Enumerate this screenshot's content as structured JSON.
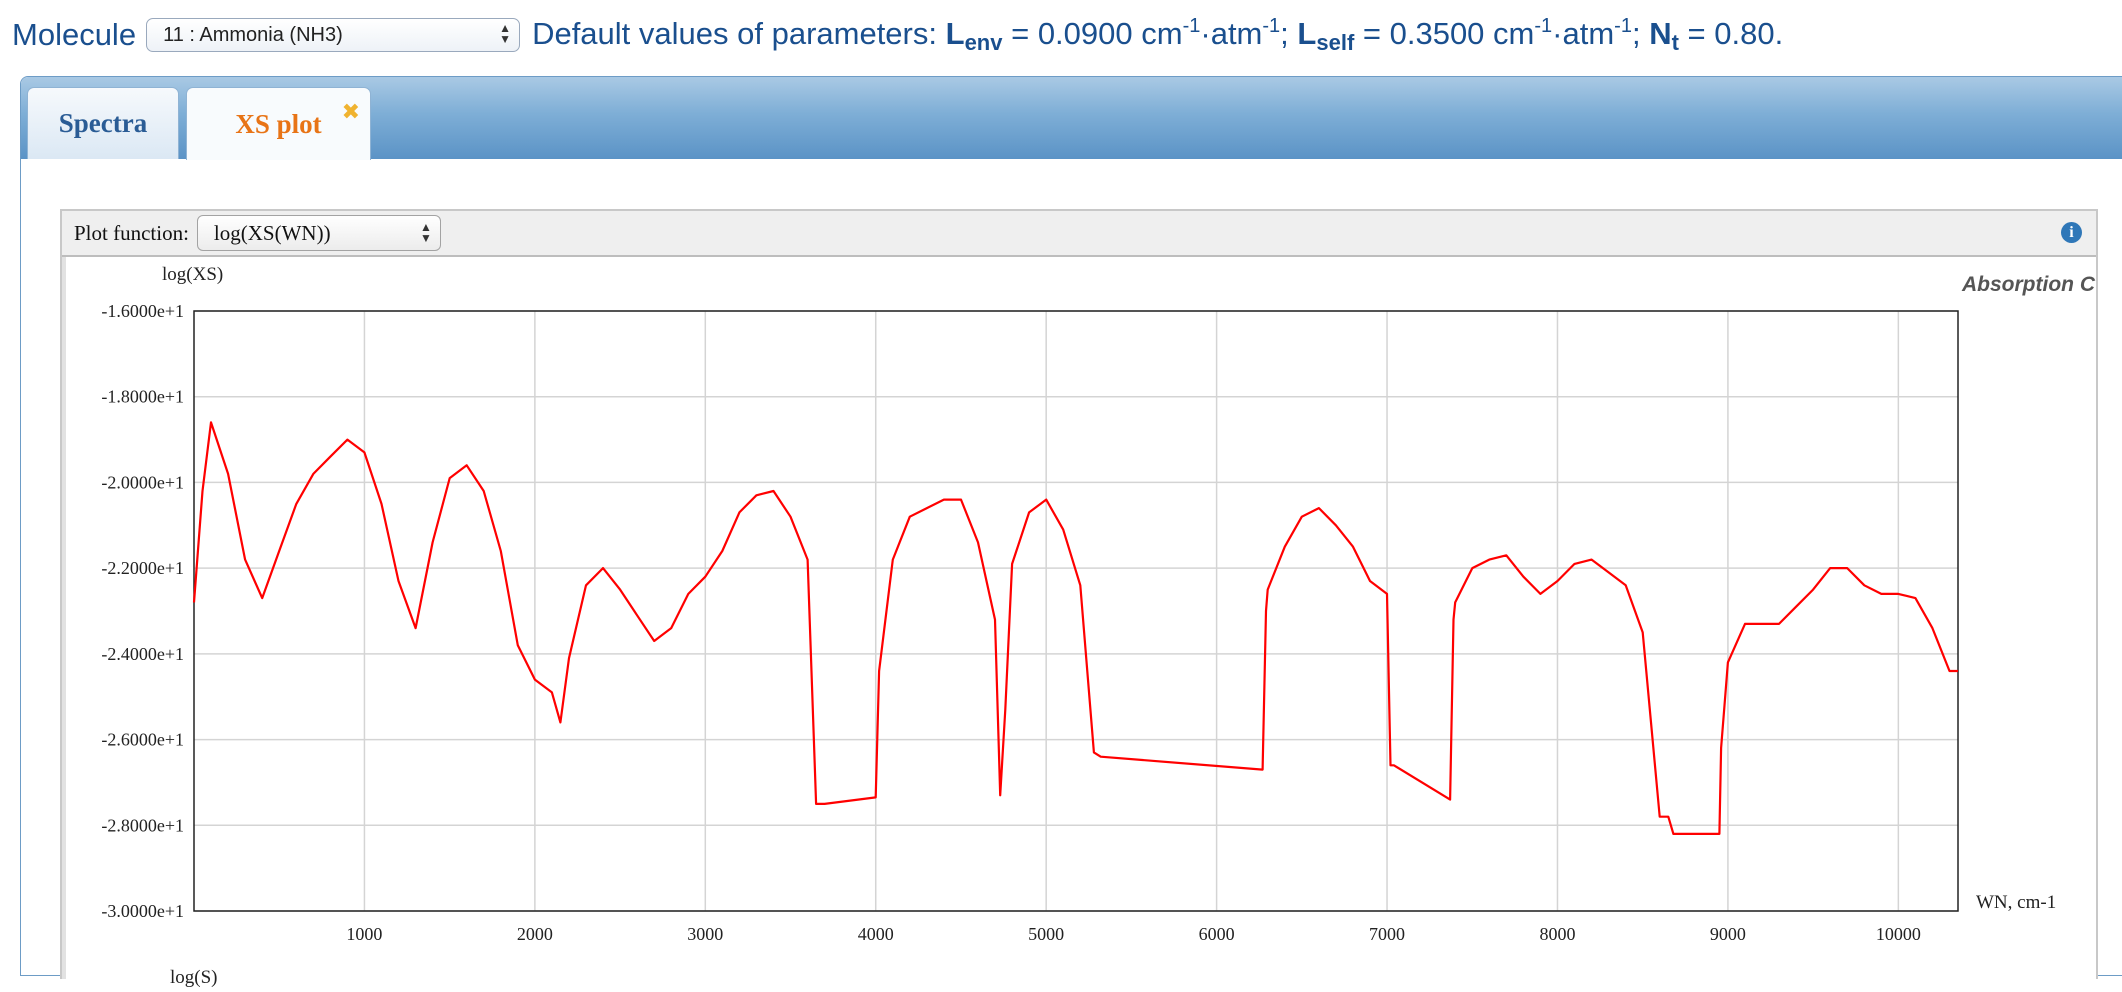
{
  "header": {
    "molecule_label": "Molecule",
    "molecule_selected": "11 : Ammonia (NH3)",
    "defaults_prefix": "Default values of parameters:",
    "L_env_symbol": "L",
    "L_env_sub": "env",
    "L_env_value": " = 0.0900 cm",
    "L_self_symbol": "L",
    "L_self_sub": "self",
    "L_self_value": " = 0.3500 cm",
    "N_t_symbol": "N",
    "N_t_sub": "t",
    "N_t_value": " = 0.80.",
    "unit_mid": "·atm",
    "exp": "-1",
    "separator": ";"
  },
  "tabs": [
    {
      "label": "Spectra",
      "active": false
    },
    {
      "label": "XS plot",
      "active": true,
      "close_glyph": "✖"
    }
  ],
  "plot_toolbar": {
    "label": "Plot function:",
    "selected": "log(XS(WN))",
    "info_icon": "info-icon"
  },
  "colors": {
    "series": "#ff0000",
    "accent": "#1a4f8e",
    "active_tab": "#e87416"
  },
  "chart_data": {
    "type": "line",
    "ylabel": "log(XS)",
    "xlabel": "WN, cm-1",
    "bottom_label": "log(S)",
    "legend_text": "Absorption C",
    "xlim": [
      0,
      10350
    ],
    "ylim": [
      -30,
      -16
    ],
    "x_ticks": [
      1000,
      2000,
      3000,
      4000,
      5000,
      6000,
      7000,
      8000,
      9000,
      10000
    ],
    "y_ticks": [
      {
        "value": -16,
        "label": "-1.6000e+1"
      },
      {
        "value": -18,
        "label": "-1.8000e+1"
      },
      {
        "value": -20,
        "label": "-2.0000e+1"
      },
      {
        "value": -22,
        "label": "-2.2000e+1"
      },
      {
        "value": -24,
        "label": "-2.4000e+1"
      },
      {
        "value": -26,
        "label": "-2.6000e+1"
      },
      {
        "value": -28,
        "label": "-2.8000e+1"
      },
      {
        "value": -30,
        "label": "-3.0000e+1"
      }
    ],
    "grid": true,
    "series": [
      {
        "color": "#ff0000",
        "x": [
          0,
          50,
          100,
          200,
          300,
          400,
          500,
          600,
          700,
          800,
          900,
          1000,
          1100,
          1200,
          1300,
          1400,
          1500,
          1600,
          1700,
          1800,
          1900,
          2000,
          2100,
          2150,
          2200,
          2300,
          2400,
          2500,
          2600,
          2700,
          2800,
          2900,
          3000,
          3100,
          3200,
          3300,
          3400,
          3500,
          3600,
          3650,
          3700,
          4000,
          4020,
          4100,
          4200,
          4300,
          4400,
          4500,
          4600,
          4700,
          4730,
          4760,
          4800,
          4900,
          5000,
          5100,
          5200,
          5280,
          5320,
          6270,
          6290,
          6300,
          6400,
          6500,
          6600,
          6700,
          6800,
          6900,
          7000,
          7020,
          7040,
          7370,
          7390,
          7400,
          7500,
          7600,
          7700,
          7800,
          7900,
          8000,
          8100,
          8200,
          8300,
          8400,
          8500,
          8600,
          8650,
          8680,
          8950,
          8960,
          8980,
          9000,
          9100,
          9200,
          9300,
          9400,
          9500,
          9600,
          9700,
          9800,
          9900,
          10000,
          10100,
          10200,
          10300,
          10350
        ],
        "y": [
          -22.8,
          -20.2,
          -18.6,
          -19.8,
          -21.8,
          -22.7,
          -21.6,
          -20.5,
          -19.8,
          -19.4,
          -19.0,
          -19.3,
          -20.5,
          -22.3,
          -23.4,
          -21.4,
          -19.9,
          -19.6,
          -20.2,
          -21.6,
          -23.8,
          -24.6,
          -24.9,
          -25.6,
          -24.1,
          -22.4,
          -22.0,
          -22.5,
          -23.1,
          -23.7,
          -23.4,
          -22.6,
          -22.2,
          -21.6,
          -20.7,
          -20.3,
          -20.2,
          -20.8,
          -21.8,
          -27.5,
          -27.5,
          -27.35,
          -24.4,
          -21.8,
          -20.8,
          -20.6,
          -20.4,
          -20.4,
          -21.4,
          -23.2,
          -27.3,
          -25.3,
          -21.9,
          -20.7,
          -20.4,
          -21.1,
          -22.4,
          -26.3,
          -26.4,
          -26.7,
          -23.0,
          -22.5,
          -21.5,
          -20.8,
          -20.6,
          -21.0,
          -21.5,
          -22.3,
          -22.6,
          -26.6,
          -26.6,
          -27.4,
          -23.2,
          -22.8,
          -22.0,
          -21.8,
          -21.7,
          -22.2,
          -22.6,
          -22.3,
          -21.9,
          -21.8,
          -22.1,
          -22.4,
          -23.5,
          -27.8,
          -27.8,
          -28.2,
          -28.2,
          -26.2,
          -25.2,
          -24.2,
          -23.3,
          -23.3,
          -23.3,
          -22.9,
          -22.5,
          -22.0,
          -22.0,
          -22.4,
          -22.6,
          -22.6,
          -22.7,
          -23.4,
          -24.4,
          -24.4
        ]
      }
    ]
  }
}
